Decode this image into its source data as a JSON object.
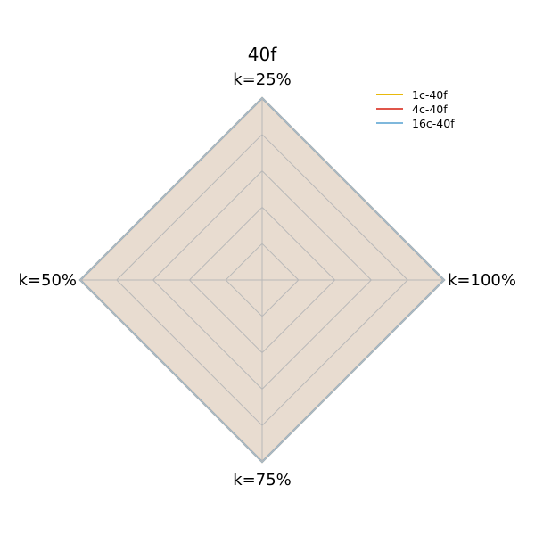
{
  "chart_data": {
    "type": "radar",
    "title": "40f",
    "axes": [
      "k=25%",
      "k=100%",
      "k=75%",
      "k=50%"
    ],
    "rlim": [
      0,
      1
    ],
    "grid_levels": 5,
    "grid": true,
    "legend_position": "top-right",
    "series": [
      {
        "name": "1c-40f",
        "color": "#e8b90c",
        "values": [
          1,
          1,
          1,
          1
        ]
      },
      {
        "name": "4c-40f",
        "color": "#e0554a",
        "values": [
          1,
          1,
          1,
          1
        ]
      },
      {
        "name": "16c-40f",
        "color": "#7fb8dc",
        "values": [
          1,
          1,
          1,
          1
        ]
      }
    ]
  }
}
